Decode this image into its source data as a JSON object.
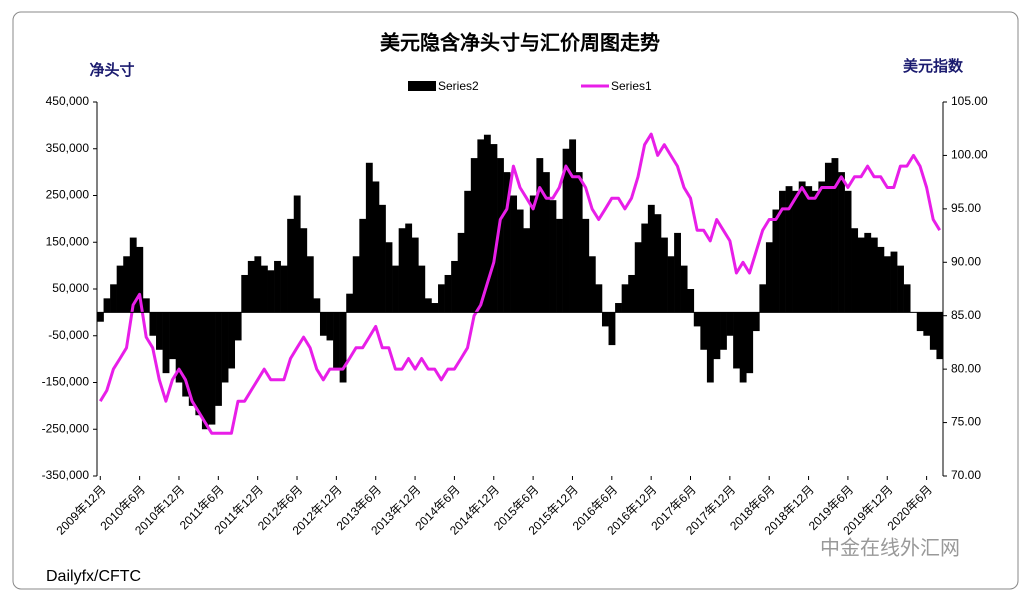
{
  "chart_data": {
    "type": "bar-line",
    "title": "美元隐含净头寸与汇价周图走势",
    "y_label": "净头寸",
    "y2_label": "美元指数",
    "source": "Dailyfx/CFTC",
    "watermark": "中金在线外汇网",
    "categories": [
      "2009年12月",
      null,
      null,
      null,
      null,
      null,
      "2010年6月",
      null,
      null,
      null,
      null,
      null,
      "2010年12月",
      null,
      null,
      null,
      null,
      null,
      "2011年6月",
      null,
      null,
      null,
      null,
      null,
      "2011年12月",
      null,
      null,
      null,
      null,
      null,
      "2012年6月",
      null,
      null,
      null,
      null,
      null,
      "2012年12月",
      null,
      null,
      null,
      null,
      null,
      "2013年6月",
      null,
      null,
      null,
      null,
      null,
      "2013年12月",
      null,
      null,
      null,
      null,
      null,
      "2014年6月",
      null,
      null,
      null,
      null,
      null,
      "2014年12月",
      null,
      null,
      null,
      null,
      null,
      "2015年6月",
      null,
      null,
      null,
      null,
      null,
      "2015年12月",
      null,
      null,
      null,
      null,
      null,
      "2016年6月",
      null,
      null,
      null,
      null,
      null,
      "2016年12月",
      null,
      null,
      null,
      null,
      null,
      "2017年6月",
      null,
      null,
      null,
      null,
      null,
      "2017年12月",
      null,
      null,
      null,
      null,
      null,
      "2018年6月",
      null,
      null,
      null,
      null,
      null,
      "2018年12月",
      null,
      null,
      null,
      null,
      null,
      "2019年6月",
      null,
      null,
      null,
      null,
      null,
      "2019年12月",
      null,
      null,
      null,
      null,
      null,
      "2020年6月",
      null,
      null
    ],
    "series": [
      {
        "name": "Series2",
        "color": "#000000",
        "kind": "bar",
        "values": [
          -20000,
          30000,
          60000,
          100000,
          120000,
          160000,
          140000,
          30000,
          -50000,
          -80000,
          -130000,
          -100000,
          -150000,
          -180000,
          -200000,
          -220000,
          -250000,
          -240000,
          -200000,
          -150000,
          -120000,
          -60000,
          80000,
          110000,
          120000,
          100000,
          90000,
          110000,
          100000,
          200000,
          250000,
          180000,
          120000,
          30000,
          -50000,
          -60000,
          -120000,
          -150000,
          40000,
          120000,
          200000,
          320000,
          280000,
          230000,
          150000,
          100000,
          180000,
          190000,
          160000,
          100000,
          30000,
          20000,
          60000,
          80000,
          110000,
          170000,
          260000,
          330000,
          370000,
          380000,
          360000,
          330000,
          300000,
          250000,
          220000,
          180000,
          250000,
          330000,
          300000,
          240000,
          200000,
          350000,
          370000,
          300000,
          200000,
          120000,
          60000,
          -30000,
          -70000,
          20000,
          60000,
          80000,
          150000,
          190000,
          230000,
          210000,
          160000,
          120000,
          170000,
          100000,
          50000,
          -30000,
          -80000,
          -150000,
          -100000,
          -80000,
          -50000,
          -120000,
          -150000,
          -130000,
          -40000,
          60000,
          150000,
          220000,
          260000,
          270000,
          260000,
          280000,
          270000,
          260000,
          280000,
          320000,
          330000,
          300000,
          260000,
          180000,
          160000,
          170000,
          160000,
          140000,
          120000,
          130000,
          100000,
          60000,
          0,
          -40000,
          -50000,
          -80000,
          -100000
        ]
      },
      {
        "name": "Series1",
        "color": "#e81ee8",
        "kind": "line",
        "axis": "y2",
        "values": [
          77,
          78,
          80,
          81,
          82,
          86,
          87,
          83,
          82,
          79,
          77,
          79,
          80,
          79,
          77,
          76,
          75,
          74,
          74,
          74,
          74,
          77,
          77,
          78,
          79,
          80,
          79,
          79,
          79,
          81,
          82,
          83,
          82,
          80,
          79,
          80,
          80,
          80,
          81,
          82,
          82,
          83,
          84,
          82,
          82,
          80,
          80,
          81,
          80,
          81,
          80,
          80,
          79,
          80,
          80,
          81,
          82,
          85,
          86,
          88,
          90,
          94,
          95,
          99,
          97,
          96,
          95,
          97,
          96,
          96,
          97,
          99,
          98,
          98,
          97,
          95,
          94,
          95,
          96,
          96,
          95,
          96,
          98,
          101,
          102,
          100,
          101,
          100,
          99,
          97,
          96,
          93,
          93,
          92,
          94,
          93,
          92,
          89,
          90,
          89,
          91,
          93,
          94,
          94,
          95,
          95,
          96,
          97,
          96,
          96,
          97,
          97,
          97,
          98,
          97,
          98,
          98,
          99,
          98,
          98,
          97,
          97,
          99,
          99,
          100,
          99,
          97,
          94,
          93
        ]
      }
    ],
    "ylim": [
      -350000,
      450000
    ],
    "yticks": [
      {
        "value": -350000,
        "label": "-350,000"
      },
      {
        "value": -250000,
        "label": "-250,000"
      },
      {
        "value": -150000,
        "label": "-150,000"
      },
      {
        "value": -50000,
        "label": "-50,000"
      },
      {
        "value": 50000,
        "label": "50,000"
      },
      {
        "value": 150000,
        "label": "150,000"
      },
      {
        "value": 250000,
        "label": "250,000"
      },
      {
        "value": 350000,
        "label": "350,000"
      },
      {
        "value": 450000,
        "label": "450,000"
      }
    ],
    "y2lim": [
      70,
      105
    ],
    "y2ticks": [
      {
        "value": 70,
        "label": "70.00"
      },
      {
        "value": 75,
        "label": "75.00"
      },
      {
        "value": 80,
        "label": "80.00"
      },
      {
        "value": 85,
        "label": "85.00"
      },
      {
        "value": 90,
        "label": "90.00"
      },
      {
        "value": 95,
        "label": "95.00"
      },
      {
        "value": 100,
        "label": "100.00"
      },
      {
        "value": 105,
        "label": "105.00"
      }
    ]
  }
}
